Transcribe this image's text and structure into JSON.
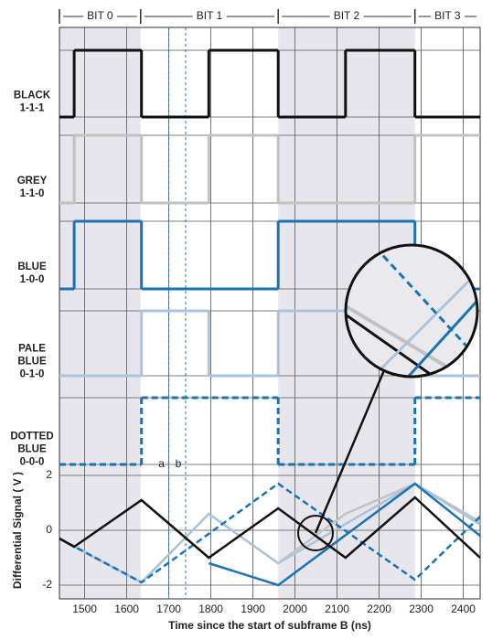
{
  "chart_data": {
    "type": "timing",
    "xlim": [
      1440,
      2440
    ],
    "xticks": [
      1500,
      1600,
      1700,
      1800,
      1900,
      2000,
      2100,
      2200,
      2300,
      2400
    ],
    "xlabel": "Time since the start of subframe B (ns)",
    "bits": [
      {
        "label": "BIT 0",
        "start": 1440,
        "end": 1633,
        "shaded": true
      },
      {
        "label": "BIT 1",
        "start": 1633,
        "end": 1960,
        "shaded": false
      },
      {
        "label": "BIT 2",
        "start": 1960,
        "end": 2285,
        "shaded": true
      },
      {
        "label": "BIT 3",
        "start": 2285,
        "end": 2440,
        "shaded": false
      }
    ],
    "digital": [
      {
        "label_lines": [
          "BLACK",
          "1-1-1"
        ],
        "color": "#111111",
        "dashed": false,
        "transitions": [
          1475,
          1635,
          1795,
          1960,
          2120,
          2285
        ],
        "levels": [
          0,
          1,
          0,
          1,
          0,
          1,
          0
        ]
      },
      {
        "label_lines": [
          "GREY",
          "1-1-0"
        ],
        "color": "#c2c2c2",
        "dashed": false,
        "transitions": [
          1475,
          1635,
          1795,
          1960,
          2285
        ],
        "levels": [
          0,
          1,
          0,
          1,
          0,
          1
        ]
      },
      {
        "label_lines": [
          "BLUE",
          "1-0-0"
        ],
        "color": "#1a73b5",
        "dashed": false,
        "transitions": [
          1475,
          1635,
          1960,
          2285
        ],
        "levels": [
          0,
          1,
          0,
          1,
          0
        ]
      },
      {
        "label_lines": [
          "PALE",
          "BLUE",
          "0-1-0"
        ],
        "color": "#a9c4dc",
        "dashed": false,
        "transitions": [
          1635,
          1795,
          1960,
          2285
        ],
        "levels": [
          0,
          1,
          0,
          1,
          0
        ]
      },
      {
        "label_lines": [
          "DOTTED",
          "BLUE",
          "0-0-0"
        ],
        "color": "#1a73b5",
        "dashed": true,
        "transitions": [
          1635,
          1960,
          2285
        ],
        "levels": [
          0,
          1,
          0,
          1
        ]
      }
    ],
    "analog": {
      "ylabel": "Differential Signal ( V )",
      "ylim": [
        -2.5,
        2.5
      ],
      "yticks": [
        -2,
        0,
        2
      ],
      "series": [
        {
          "color": "#c2c2c2",
          "dashed": false,
          "x": [
            1440,
            1475,
            1635,
            1795,
            1960,
            2120,
            2285,
            2440
          ],
          "values": [
            -0.3,
            -0.6,
            -1.9,
            0.6,
            -1.2,
            0.6,
            1.7,
            0.3
          ]
        },
        {
          "color": "#a9c4dc",
          "dashed": false,
          "x": [
            1440,
            1475,
            1635,
            1795,
            1960,
            2285,
            2440
          ],
          "values": [
            -0.3,
            -0.6,
            -1.9,
            0.6,
            -1.2,
            1.7,
            0.2
          ]
        },
        {
          "color": "#1a73b5",
          "dashed": true,
          "x": [
            1440,
            1635,
            1960,
            2285,
            2440
          ],
          "values": [
            -0.3,
            -1.9,
            1.7,
            -1.8,
            0.5
          ]
        },
        {
          "color": "#1a73b5",
          "dashed": false,
          "x": [
            1795,
            1960,
            2285,
            2440
          ],
          "values": [
            -1.2,
            -2.0,
            1.7,
            -0.2
          ]
        },
        {
          "color": "#111111",
          "dashed": false,
          "x": [
            1440,
            1475,
            1635,
            1795,
            1960,
            2120,
            2285,
            2440
          ],
          "values": [
            -0.3,
            -0.6,
            1.1,
            -1.0,
            0.8,
            -1.0,
            1.2,
            -1.0
          ]
        }
      ],
      "markers": [
        {
          "x": 1700,
          "label": "a"
        },
        {
          "x": 1740,
          "label": "b"
        }
      ]
    }
  }
}
